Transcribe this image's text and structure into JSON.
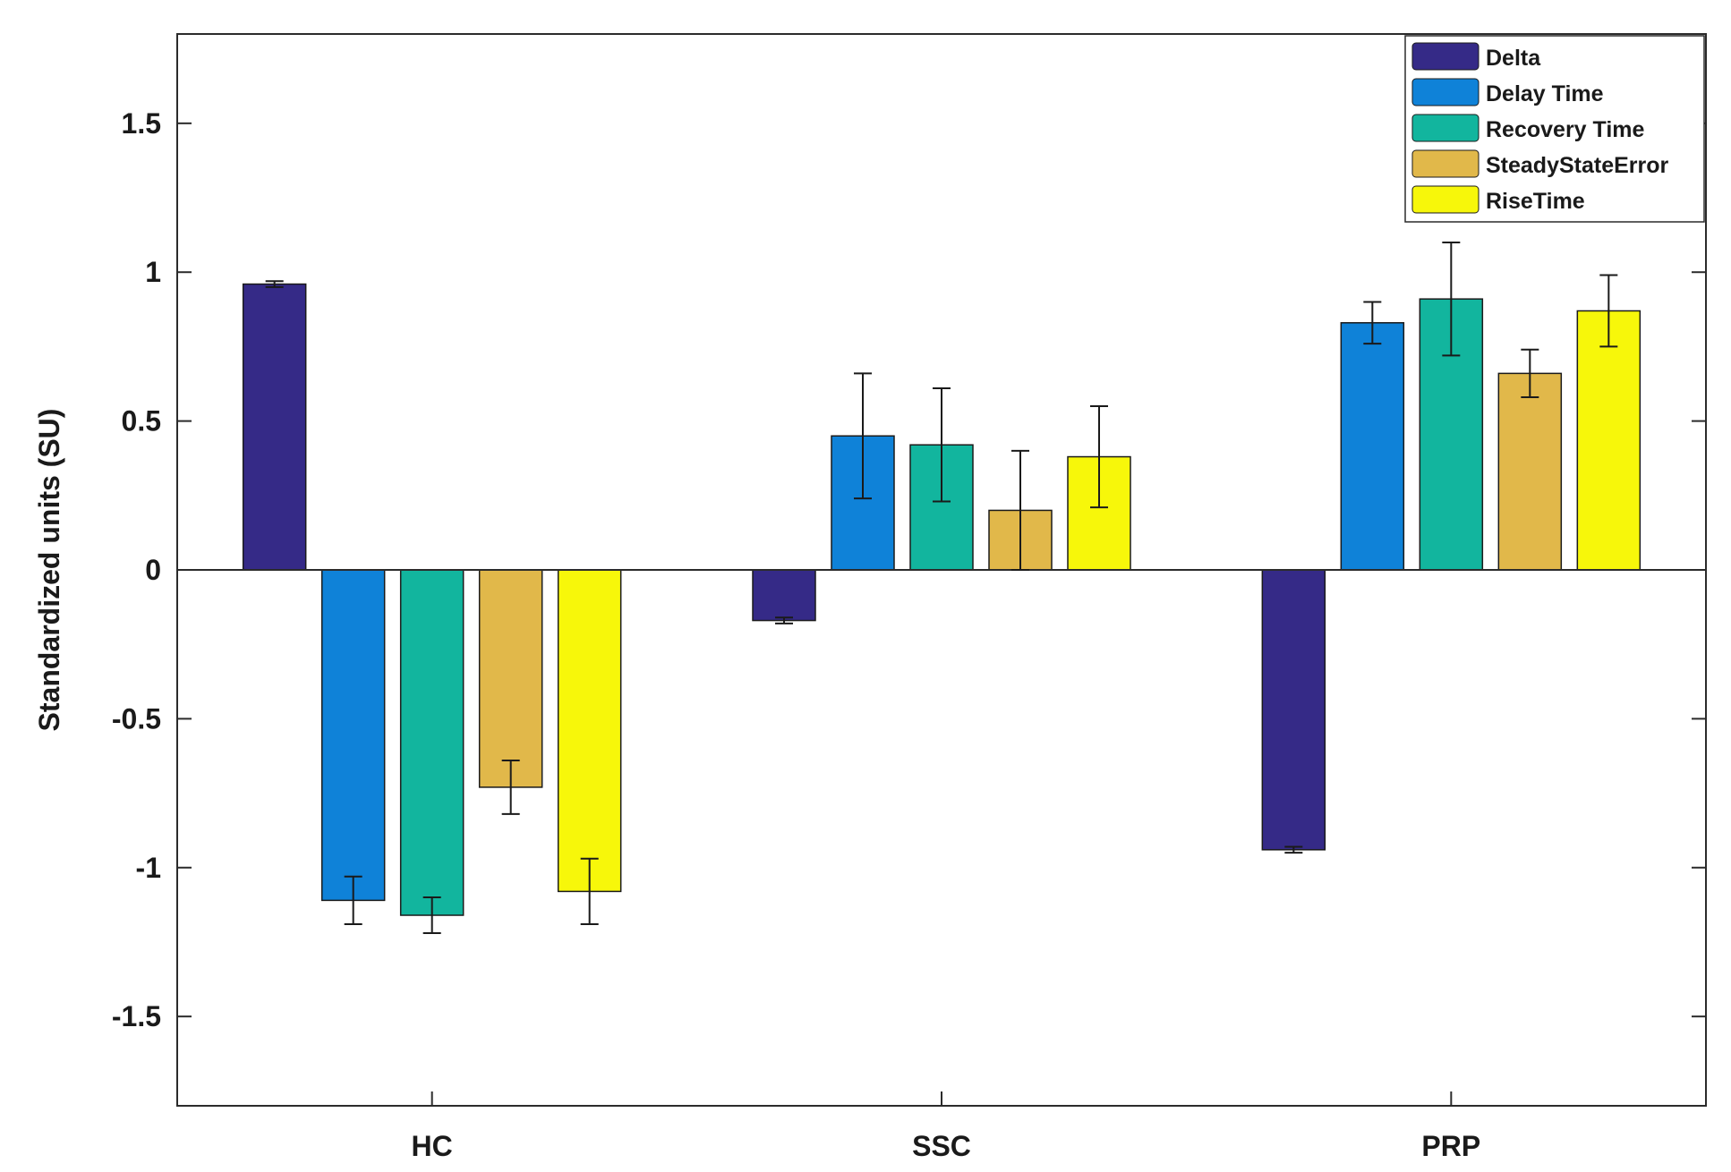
{
  "chart_data": {
    "type": "bar",
    "title": "",
    "xlabel": "",
    "ylabel": "Standardized units (SU)",
    "ylim": [
      -1.8,
      1.8
    ],
    "yticks": [
      -1.5,
      -1,
      -0.5,
      0,
      0.5,
      1,
      1.5
    ],
    "ytick_labels": [
      "-1.5",
      "-1",
      "-0.5",
      "0",
      "0.5",
      "1",
      "1.5"
    ],
    "categories": [
      "HC",
      "SSC",
      "PRP"
    ],
    "legend_position": "top-right",
    "grid": false,
    "series": [
      {
        "name": "Delta",
        "color": "#352a87",
        "values": [
          0.96,
          -0.17,
          -0.94
        ],
        "errors": [
          0.01,
          0.01,
          0.01
        ]
      },
      {
        "name": "Delay Time",
        "color": "#0f82d8",
        "values": [
          -1.11,
          0.45,
          0.83
        ],
        "errors": [
          0.08,
          0.21,
          0.07
        ]
      },
      {
        "name": "Recovery Time",
        "color": "#12b59e",
        "values": [
          -1.16,
          0.42,
          0.91
        ],
        "errors": [
          0.06,
          0.19,
          0.19
        ]
      },
      {
        "name": "SteadyStateError",
        "color": "#e1b84a",
        "values": [
          -0.73,
          0.2,
          0.66
        ],
        "errors": [
          0.09,
          0.2,
          0.08
        ]
      },
      {
        "name": "RiseTime",
        "color": "#f7f70a",
        "values": [
          -1.08,
          0.38,
          0.87
        ],
        "errors": [
          0.11,
          0.17,
          0.12
        ]
      }
    ]
  }
}
